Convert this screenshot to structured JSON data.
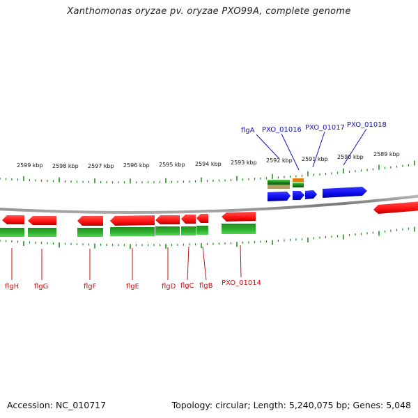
{
  "title": "Xanthomonas oryzae pv. oryzae PXO99A, complete genome",
  "footer": {
    "accession": "Accession: NC_010717",
    "summary": "Topology: circular; Length: 5,240,075 bp; Genes: 5,048"
  },
  "colors": {
    "forward_gene": "#1414ff",
    "reverse_gene": "#ff1414",
    "cds": "#1e8c1e",
    "forward_label": "#1010c0",
    "reverse_label": "#c01010",
    "tick": "#118811",
    "backbone": "#888888"
  },
  "scale_labels": [
    "2599 kbp",
    "2598 kbp",
    "2597 kbp",
    "2596 kbp",
    "2595 kbp",
    "2594 kbp",
    "2593 kbp",
    "2592 kbp",
    "2591 kbp",
    "2590 kbp",
    "2589 kbp"
  ],
  "forward_gene_labels": [
    "flgA",
    "PXO_01016",
    "PXO_01017",
    "PXO_01018"
  ],
  "reverse_gene_labels": [
    "flgH",
    "flgG",
    "flgF",
    "flgE",
    "flgD",
    "flgC",
    "flgB",
    "PXO_01014"
  ]
}
